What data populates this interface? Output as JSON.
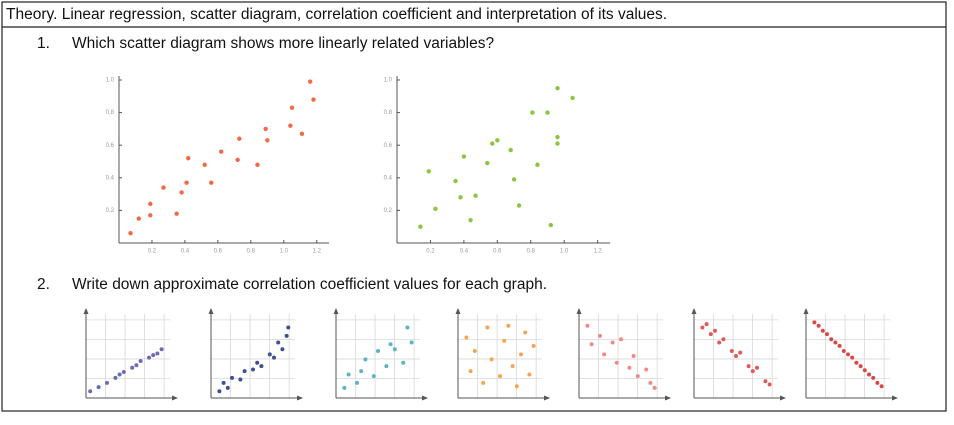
{
  "header": {
    "title": "Theory. Linear regression, scatter diagram, correlation coefficient and interpretation of its values."
  },
  "questions": [
    {
      "number": "1.",
      "text": "Which scatter diagram shows more linearly related variables?",
      "charts": [
        {
          "type": "scatter",
          "color": "#f06a48",
          "x": [
            0.07,
            0.12,
            0.19,
            0.19,
            0.27,
            0.35,
            0.38,
            0.41,
            0.42,
            0.52,
            0.56,
            0.62,
            0.72,
            0.73,
            0.84,
            0.89,
            0.9,
            1.04,
            1.05,
            1.11,
            1.16,
            1.18
          ],
          "values": [
            0.06,
            0.15,
            0.17,
            0.24,
            0.34,
            0.18,
            0.31,
            0.37,
            0.52,
            0.48,
            0.37,
            0.56,
            0.51,
            0.64,
            0.48,
            0.7,
            0.63,
            0.72,
            0.83,
            0.67,
            0.99,
            0.88
          ],
          "xlim": [
            0,
            1.25
          ],
          "ylim": [
            0,
            1.0
          ],
          "xticks": [
            0.2,
            0.4,
            0.6,
            0.8,
            {
              "value": 1,
              "label": "1.0"
            },
            1.2
          ],
          "yticks": [
            0.2,
            0.4,
            0.6,
            0.8,
            {
              "value": 1,
              "label": "1.0"
            }
          ]
        },
        {
          "type": "scatter",
          "color": "#8cc63f",
          "x": [
            0.14,
            0.19,
            0.23,
            0.35,
            0.38,
            0.4,
            0.44,
            0.47,
            0.54,
            0.57,
            0.6,
            0.68,
            0.7,
            0.73,
            0.81,
            0.84,
            0.9,
            0.92,
            0.96,
            0.96,
            0.96,
            1.05
          ],
          "values": [
            0.1,
            0.44,
            0.21,
            0.38,
            0.28,
            0.53,
            0.14,
            0.29,
            0.49,
            0.61,
            0.63,
            0.57,
            0.39,
            0.23,
            0.8,
            0.48,
            0.8,
            0.11,
            0.65,
            0.61,
            0.95,
            0.89
          ],
          "xlim": [
            0,
            1.25
          ],
          "ylim": [
            0,
            1.0
          ],
          "xticks": [
            0.2,
            0.4,
            0.6,
            0.8,
            {
              "value": 1,
              "label": "1.0"
            },
            1.2
          ],
          "yticks": [
            0.2,
            0.4,
            0.6,
            0.8,
            {
              "value": 1,
              "label": "1.0"
            }
          ]
        }
      ]
    },
    {
      "number": "2.",
      "text": "Write down approximate correlation coefficient values for each graph.",
      "charts": [
        {
          "type": "scatter",
          "color": "#6b6bb0",
          "xlim": [
            0,
            10
          ],
          "ylim": [
            0,
            10
          ],
          "x": [
            0.5,
            1.5,
            2.5,
            3.5,
            4,
            4.5,
            5.5,
            6,
            6.5,
            7.5,
            8,
            8.5,
            9
          ],
          "values": [
            0.8,
            1.3,
            1.8,
            2.4,
            2.8,
            3.1,
            3.6,
            3.9,
            4.4,
            4.8,
            5.1,
            5.3,
            5.8
          ]
        },
        {
          "type": "scatter",
          "color": "#3f4f92",
          "xlim": [
            0,
            10
          ],
          "ylim": [
            0,
            10
          ],
          "x": [
            1,
            1.5,
            2,
            2.5,
            3.5,
            4,
            5,
            5.5,
            6,
            7,
            7.5,
            8,
            8.5,
            9,
            9.2
          ],
          "values": [
            0.8,
            1.8,
            1.2,
            2.4,
            2.2,
            3.2,
            3.4,
            4.2,
            3.8,
            5.2,
            4.8,
            6.6,
            5.8,
            7.4,
            8.4
          ]
        },
        {
          "type": "scatter",
          "color": "#5ab4c4",
          "xlim": [
            0,
            10
          ],
          "ylim": [
            0,
            10
          ],
          "x": [
            1,
            1.5,
            2.5,
            3,
            3.5,
            4.5,
            5,
            6,
            6.5,
            7,
            8,
            8.5,
            9
          ],
          "values": [
            1.2,
            2.8,
            1.8,
            3.2,
            4.6,
            2.6,
            5.6,
            3.8,
            6.4,
            5.8,
            4.2,
            8.4,
            6.6
          ]
        },
        {
          "type": "scatter",
          "color": "#f5a455",
          "xlim": [
            0,
            10
          ],
          "ylim": [
            0,
            10
          ],
          "x": [
            1,
            1.5,
            2,
            3,
            3.5,
            4,
            5,
            5.5,
            6,
            6.5,
            7,
            7.5,
            8,
            8.5,
            9
          ],
          "values": [
            7.2,
            3.2,
            5.6,
            1.8,
            8.4,
            4.6,
            2.6,
            6.8,
            8.6,
            3.8,
            1.4,
            5.2,
            7.8,
            2.8,
            6.2
          ]
        },
        {
          "type": "scatter",
          "color": "#f08a8a",
          "xlim": [
            0,
            10
          ],
          "ylim": [
            0,
            10
          ],
          "x": [
            1,
            1.5,
            2.5,
            3,
            4,
            4.5,
            5,
            6,
            6.5,
            7,
            8,
            8.5,
            9
          ],
          "values": [
            8.6,
            6.4,
            7.4,
            5.2,
            6.6,
            4.2,
            7.0,
            3.6,
            5.0,
            2.6,
            3.4,
            1.8,
            1.2
          ]
        },
        {
          "type": "scatter",
          "color": "#e05a5a",
          "xlim": [
            0,
            10
          ],
          "ylim": [
            0,
            10
          ],
          "x": [
            1,
            1.5,
            2,
            2.5,
            3,
            3.5,
            4.5,
            5,
            5.5,
            6.5,
            7,
            7.5,
            8.5,
            9
          ],
          "values": [
            8.4,
            8.8,
            7.6,
            8.0,
            6.6,
            7.0,
            5.6,
            5.0,
            5.4,
            3.8,
            3.2,
            3.6,
            2.0,
            1.6
          ]
        },
        {
          "type": "scatter",
          "color": "#d84848",
          "xlim": [
            0,
            10
          ],
          "ylim": [
            0,
            10
          ],
          "x": [
            1,
            1.5,
            2,
            2.5,
            3,
            3.5,
            4,
            4.5,
            5,
            5.5,
            6,
            6.5,
            7,
            7.5,
            8,
            8.5,
            9
          ],
          "values": [
            9.0,
            8.6,
            8.0,
            7.6,
            7.0,
            6.6,
            6.2,
            5.6,
            5.2,
            4.8,
            4.2,
            3.8,
            3.3,
            2.8,
            2.4,
            1.8,
            1.4
          ]
        }
      ]
    }
  ]
}
